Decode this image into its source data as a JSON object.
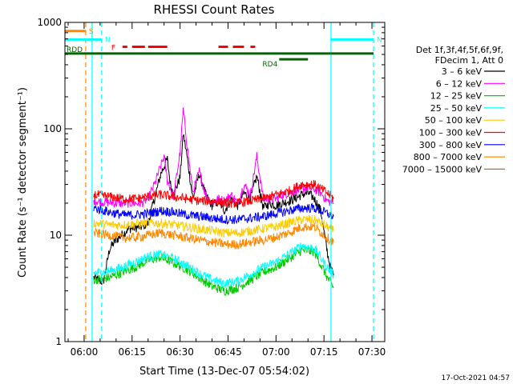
{
  "chart_data": {
    "type": "line",
    "title": "RHESSI Count Rates",
    "xlabel": "Start Time (13-Dec-07 05:54:02)",
    "ylabel": "Count Rate (s⁻¹ detector segment⁻¹)",
    "y_scale": "log",
    "ylim": [
      1,
      1000
    ],
    "xlim_minutes": [
      354,
      454
    ],
    "x_tick_labels": [
      "06:00",
      "06:15",
      "06:30",
      "06:45",
      "07:00",
      "07:15",
      "07:30"
    ],
    "x_tick_minutes": [
      360,
      375,
      390,
      405,
      420,
      435,
      450
    ],
    "y_tick_labels": [
      "1",
      "10",
      "100",
      "1000"
    ],
    "y_tick_values": [
      1,
      10,
      100,
      1000
    ],
    "legend_header": [
      "Det 1f,3f,4f,5f,6f,9f,",
      "FDecim 1, Att 0"
    ],
    "legend_position": "right",
    "series": [
      {
        "name": "3 – 6 keV",
        "color": "#000000",
        "x": [
          363,
          366,
          368,
          370,
          374,
          378,
          380,
          382,
          384,
          386,
          387,
          388,
          390,
          391,
          392,
          394,
          396,
          398,
          400,
          402,
          404,
          406,
          408,
          410,
          412,
          414,
          416,
          418,
          420,
          422,
          424,
          426,
          428,
          430,
          432,
          434,
          436,
          437,
          438
        ],
        "values": [
          4,
          3.6,
          7.5,
          9,
          11.5,
          12,
          13,
          22,
          38,
          52,
          30,
          24,
          35,
          90,
          60,
          22,
          38,
          24,
          19,
          21,
          17,
          22,
          19,
          25,
          22,
          36,
          18,
          20,
          19,
          20,
          21,
          22,
          24,
          25,
          22,
          17,
          7,
          5,
          4.2
        ]
      },
      {
        "name": "6 – 12 keV",
        "color": "#ff00ff",
        "x": [
          363,
          370,
          375,
          378,
          380,
          382,
          384,
          385,
          386,
          388,
          390,
          391,
          392,
          394,
          396,
          398,
          400,
          402,
          404,
          406,
          408,
          410,
          412,
          414,
          416,
          418,
          420,
          422,
          424,
          426,
          428,
          430,
          432,
          434,
          436,
          438
        ],
        "values": [
          21,
          20,
          20,
          20,
          22,
          30,
          45,
          55,
          33,
          23,
          60,
          150,
          80,
          25,
          40,
          24,
          20,
          22,
          21,
          24,
          20,
          30,
          24,
          55,
          22,
          22,
          22,
          24,
          25,
          26,
          27,
          28,
          27,
          25,
          21,
          20
        ]
      },
      {
        "name": "12 – 25 keV",
        "color": "#00cc00",
        "x": [
          363,
          368,
          372,
          376,
          380,
          384,
          388,
          392,
          396,
          400,
          404,
          408,
          412,
          416,
          420,
          424,
          428,
          432,
          436,
          438
        ],
        "values": [
          3.8,
          4,
          4.5,
          5,
          5.8,
          6.2,
          5.5,
          4.8,
          4,
          3.3,
          3,
          3.2,
          3.8,
          4.5,
          5,
          6,
          7.2,
          7,
          4,
          3.2
        ]
      },
      {
        "name": "25 – 50 keV",
        "color": "#00ffff",
        "x": [
          363,
          368,
          372,
          376,
          380,
          384,
          388,
          392,
          396,
          400,
          404,
          408,
          412,
          416,
          420,
          424,
          428,
          432,
          436,
          438
        ],
        "values": [
          4.4,
          4.6,
          5,
          5.6,
          6.3,
          6.6,
          6,
          5.2,
          4.4,
          3.8,
          3.5,
          3.7,
          4.3,
          5,
          5.6,
          6.6,
          8,
          7.5,
          5,
          4.2
        ]
      },
      {
        "name": "50 – 100 keV",
        "color": "#ffcc00",
        "x": [
          363,
          368,
          372,
          376,
          380,
          384,
          388,
          392,
          396,
          400,
          404,
          408,
          412,
          416,
          420,
          424,
          428,
          432,
          436,
          438
        ],
        "values": [
          13,
          12.5,
          12.5,
          12.8,
          13,
          13,
          12.5,
          12,
          11.5,
          11,
          10.5,
          10.5,
          11,
          11.5,
          12,
          13,
          14,
          14,
          12,
          11
        ]
      },
      {
        "name": "100 – 300 keV",
        "color": "#ff0000",
        "x": [
          363,
          368,
          372,
          376,
          380,
          384,
          388,
          392,
          396,
          400,
          404,
          408,
          412,
          416,
          420,
          424,
          428,
          432,
          436,
          438
        ],
        "values": [
          24,
          23,
          22,
          22,
          23,
          24,
          23,
          22,
          21,
          21,
          20,
          20,
          21,
          22,
          24,
          26,
          30,
          30,
          25,
          22
        ]
      },
      {
        "name": "300 – 800 keV",
        "color": "#0000ff",
        "x": [
          363,
          368,
          372,
          376,
          380,
          384,
          388,
          392,
          396,
          400,
          404,
          408,
          412,
          416,
          420,
          424,
          428,
          432,
          436,
          438
        ],
        "values": [
          18,
          16.5,
          15.5,
          15.5,
          16,
          17,
          16.5,
          15.5,
          15,
          14.5,
          14,
          14,
          14.5,
          15,
          16,
          17,
          18,
          18,
          16,
          15
        ]
      },
      {
        "name": "800 – 7000 keV",
        "color": "#ff8800",
        "x": [
          363,
          368,
          372,
          376,
          380,
          384,
          388,
          392,
          396,
          400,
          404,
          408,
          412,
          416,
          420,
          424,
          428,
          432,
          436,
          438
        ],
        "values": [
          10.5,
          10,
          9.5,
          9.5,
          10,
          10.5,
          10,
          9.5,
          9,
          8.6,
          8.2,
          8.2,
          8.6,
          9,
          9.6,
          10.5,
          12,
          12,
          9.5,
          8.6
        ]
      },
      {
        "name": "7000 – 15000 keV",
        "color": "#aa7722",
        "x": [],
        "values": []
      }
    ],
    "annotations": {
      "bars": [
        {
          "label": "S",
          "color": "#ff8800",
          "level": 830,
          "x_start": 354,
          "x_end": 360.5
        },
        {
          "label": "N",
          "color": "#00ffff",
          "level": 690,
          "x_start": 354,
          "x_end": 365.5
        },
        {
          "label": "N",
          "color": "#00ffff",
          "level": 690,
          "x_start": 437,
          "x_end": 450.5
        },
        {
          "label": "F",
          "color": "#ff0000",
          "level": 590,
          "segments": [
            [
              372,
              373.5
            ],
            [
              375,
              379
            ],
            [
              380,
              386
            ],
            [
              402,
              405
            ],
            [
              406.5,
              410
            ],
            [
              412,
              413.5
            ]
          ]
        },
        {
          "label": "RDD",
          "color": "#006600",
          "level": 510,
          "x_start": 354,
          "x_end": 450.5
        },
        {
          "label": "RD4",
          "color": "#006600",
          "level": 450,
          "x_start": 421,
          "x_end": 430
        }
      ],
      "vlines": [
        {
          "color": "#ff8800",
          "x": 360.5,
          "style": "dashed"
        },
        {
          "color": "#00ffff",
          "x": 362.5,
          "style": "solid"
        },
        {
          "color": "#00ffff",
          "x": 365.5,
          "style": "dashed"
        },
        {
          "color": "#00ffff",
          "x": 437.2,
          "style": "solid"
        },
        {
          "color": "#00ffff",
          "x": 450.5,
          "style": "dashed"
        }
      ]
    }
  },
  "footer_timestamp": "17-Oct-2021 04:57"
}
